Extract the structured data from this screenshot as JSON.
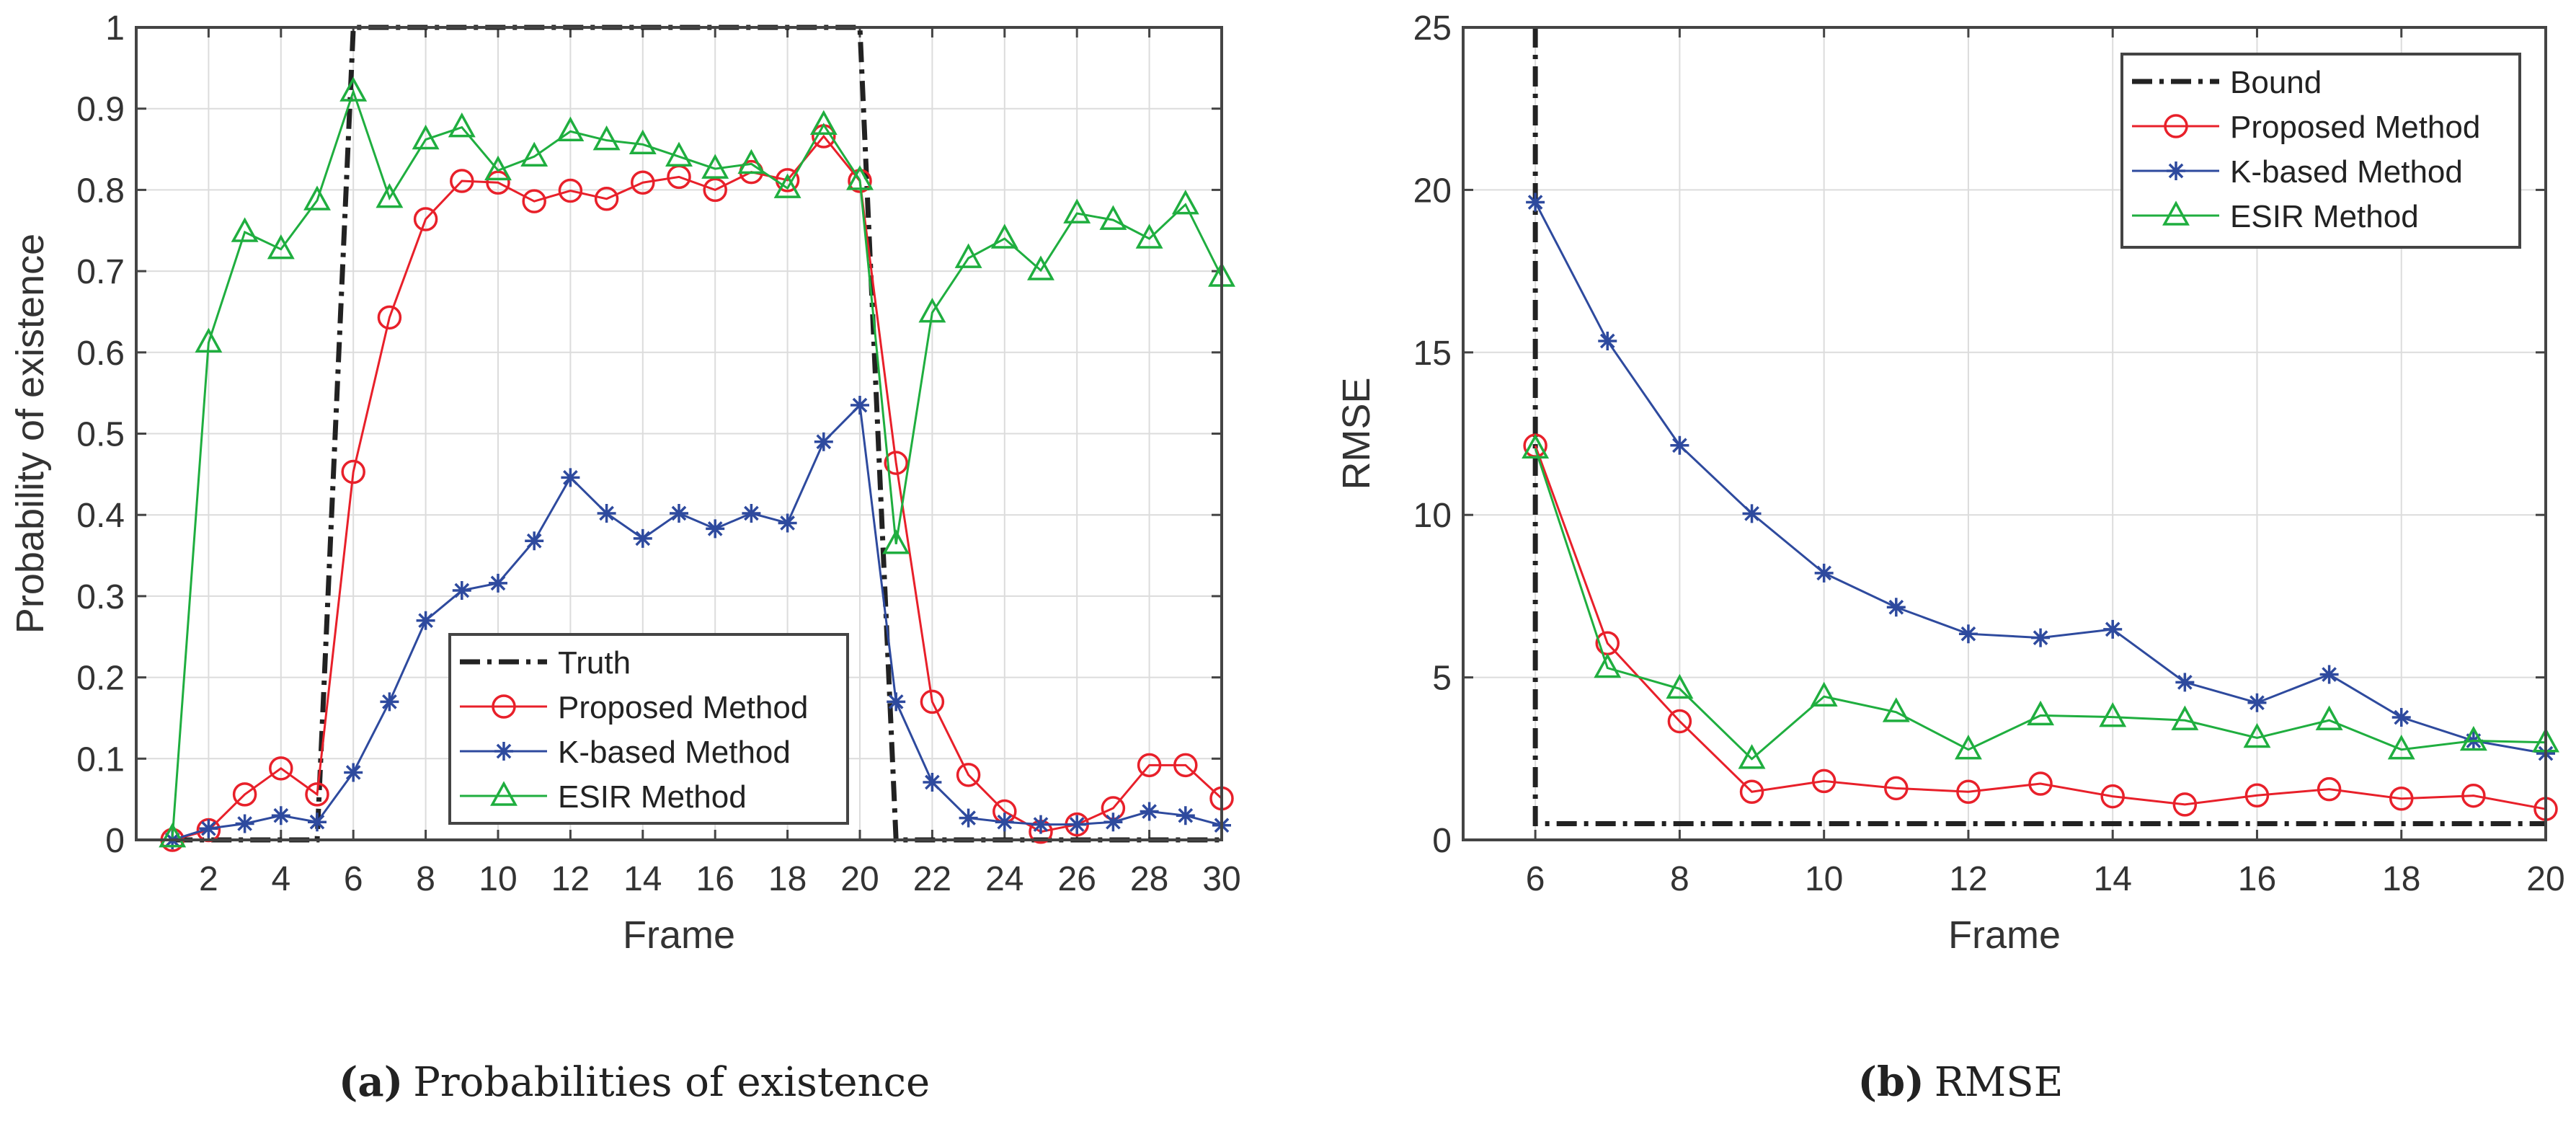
{
  "colors": {
    "truth": "#222222",
    "proposed": "#e8202a",
    "kbased": "#2e4a9e",
    "esir": "#1fae3f",
    "axis": "#444444",
    "grid": "#dcdcdc"
  },
  "chart_data": [
    {
      "type": "line",
      "caption_letter": "(a)",
      "caption": "Probabilities of existence",
      "xlabel": "Frame",
      "ylabel": "Probability of existence",
      "xlim": [
        0,
        30
      ],
      "ylim": [
        0,
        1
      ],
      "xticks": [
        2,
        4,
        6,
        8,
        10,
        12,
        14,
        16,
        18,
        20,
        22,
        24,
        26,
        28,
        30
      ],
      "xtick_labels": [
        "2",
        "4",
        "6",
        "8",
        "10",
        "12",
        "14",
        "16",
        "18",
        "20",
        "22",
        "24",
        "26",
        "28",
        "30"
      ],
      "yticks": [
        0,
        0.1,
        0.2,
        0.3,
        0.4,
        0.5,
        0.6,
        0.7,
        0.8,
        0.9,
        1
      ],
      "ytick_labels": [
        "0",
        "0.1",
        "0.2",
        "0.3",
        "0.4",
        "0.5",
        "0.6",
        "0.7",
        "0.8",
        "0.9",
        "1"
      ],
      "grid": true,
      "legend_position": "bottom-center",
      "x": [
        1,
        2,
        3,
        4,
        5,
        6,
        7,
        8,
        9,
        10,
        11,
        12,
        13,
        14,
        15,
        16,
        17,
        18,
        19,
        20,
        21,
        22,
        23,
        24,
        25,
        26,
        27,
        28,
        29,
        30
      ],
      "series": [
        {
          "name": "Truth",
          "key": "truth",
          "marker": "none",
          "style": "dashdot",
          "values": [
            0,
            0,
            0,
            0,
            0,
            1,
            1,
            1,
            1,
            1,
            1,
            1,
            1,
            1,
            1,
            1,
            1,
            1,
            1,
            1,
            0,
            0,
            0,
            0,
            0,
            0,
            0,
            0,
            0,
            0
          ]
        },
        {
          "name": "Proposed Method",
          "key": "proposed",
          "marker": "circle",
          "values": [
            0,
            0.012,
            0.056,
            0.088,
            0.056,
            0.453,
            0.643,
            0.764,
            0.811,
            0.809,
            0.786,
            0.799,
            0.789,
            0.809,
            0.816,
            0.8,
            0.822,
            0.812,
            0.866,
            0.811,
            0.464,
            0.17,
            0.08,
            0.035,
            0.01,
            0.019,
            0.039,
            0.092,
            0.092,
            0.051
          ]
        },
        {
          "name": "K-based Method",
          "key": "kbased",
          "marker": "asterisk",
          "values": [
            0,
            0.014,
            0.02,
            0.03,
            0.022,
            0.083,
            0.17,
            0.27,
            0.307,
            0.316,
            0.368,
            0.446,
            0.402,
            0.371,
            0.402,
            0.383,
            0.402,
            0.39,
            0.49,
            0.535,
            0.17,
            0.071,
            0.027,
            0.022,
            0.019,
            0.019,
            0.022,
            0.035,
            0.03,
            0.018
          ]
        },
        {
          "name": "ESIR Method",
          "key": "esir",
          "marker": "triangle",
          "values": [
            0.003,
            0.612,
            0.748,
            0.727,
            0.787,
            0.921,
            0.79,
            0.862,
            0.877,
            0.824,
            0.841,
            0.872,
            0.861,
            0.856,
            0.841,
            0.826,
            0.832,
            0.802,
            0.88,
            0.812,
            0.364,
            0.649,
            0.716,
            0.74,
            0.701,
            0.771,
            0.763,
            0.74,
            0.782,
            0.693
          ]
        }
      ]
    },
    {
      "type": "line",
      "caption_letter": "(b)",
      "caption": "RMSE",
      "xlabel": "Frame",
      "ylabel": "RMSE",
      "xlim": [
        5,
        20
      ],
      "ylim": [
        0,
        25
      ],
      "xticks": [
        6,
        8,
        10,
        12,
        14,
        16,
        18,
        20
      ],
      "xtick_labels": [
        "6",
        "8",
        "10",
        "12",
        "14",
        "16",
        "18",
        "20"
      ],
      "yticks": [
        0,
        5,
        10,
        15,
        20,
        25
      ],
      "ytick_labels": [
        "0",
        "5",
        "10",
        "15",
        "20",
        "25"
      ],
      "grid": true,
      "legend_position": "top-right",
      "x": [
        6,
        7,
        8,
        9,
        10,
        11,
        12,
        13,
        14,
        15,
        16,
        17,
        18,
        19,
        20
      ],
      "series": [
        {
          "name": "Bound",
          "key": "truth",
          "marker": "none",
          "style": "dashdot",
          "x": [
            6,
            6,
            7,
            8,
            9,
            10,
            11,
            12,
            13,
            14,
            15,
            16,
            17,
            18,
            19,
            20
          ],
          "values": [
            25,
            0.5,
            0.5,
            0.5,
            0.5,
            0.5,
            0.5,
            0.5,
            0.5,
            0.5,
            0.5,
            0.5,
            0.5,
            0.5,
            0.5,
            0.5
          ]
        },
        {
          "name": "Proposed Method",
          "key": "proposed",
          "marker": "circle",
          "values": [
            12.13,
            6.05,
            3.65,
            1.48,
            1.81,
            1.59,
            1.48,
            1.73,
            1.34,
            1.09,
            1.37,
            1.56,
            1.27,
            1.36,
            0.95
          ]
        },
        {
          "name": "K-based Method",
          "key": "kbased",
          "marker": "asterisk",
          "values": [
            19.62,
            15.35,
            12.14,
            10.04,
            8.21,
            7.16,
            6.34,
            6.22,
            6.48,
            4.85,
            4.22,
            5.09,
            3.77,
            3.05,
            2.66
          ]
        },
        {
          "name": "ESIR Method",
          "key": "esir",
          "marker": "triangle",
          "values": [
            12.04,
            5.29,
            4.65,
            2.49,
            4.41,
            3.93,
            2.78,
            3.83,
            3.78,
            3.68,
            3.14,
            3.68,
            2.78,
            3.05,
            3.0
          ]
        }
      ]
    }
  ]
}
